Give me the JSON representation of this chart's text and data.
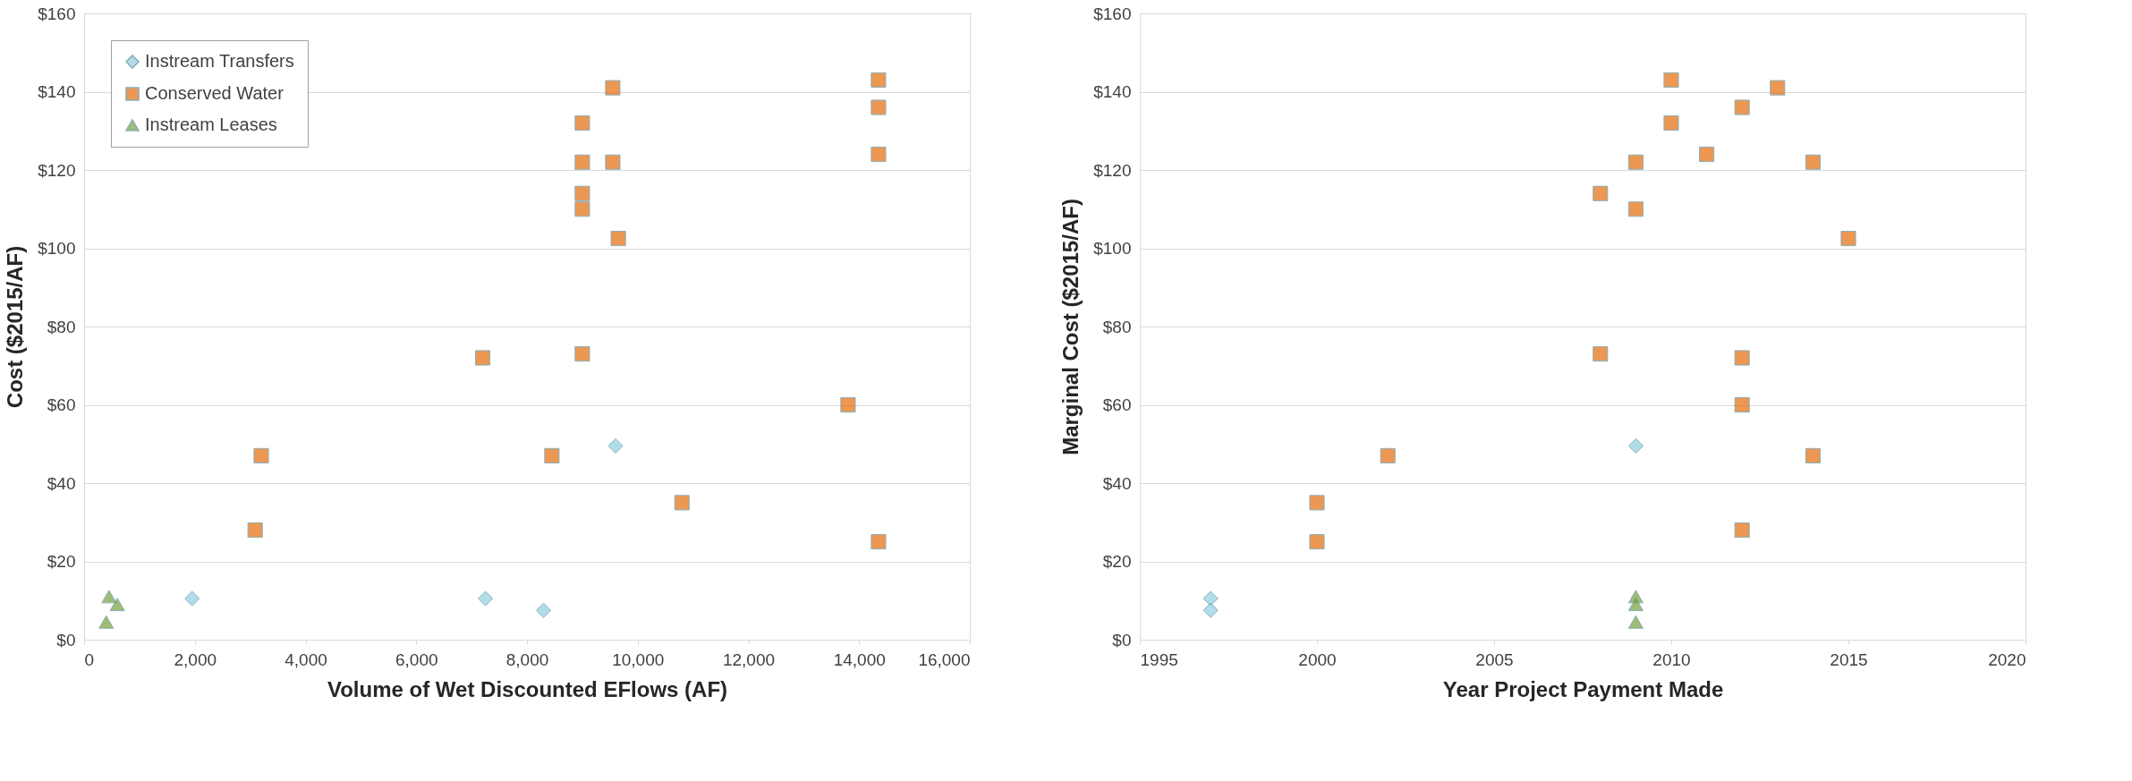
{
  "chart_data": [
    {
      "type": "scatter",
      "xlabel": "Volume of Wet Discounted EFlows (AF)",
      "ylabel": "Cost ($2015/AF)",
      "xlim": [
        0,
        16000
      ],
      "xticks": [
        0,
        {
          "value": 2000,
          "label": "2,000"
        },
        {
          "value": 4000,
          "label": "4,000"
        },
        {
          "value": 6000,
          "label": "6,000"
        },
        {
          "value": 8000,
          "label": "8,000"
        },
        {
          "value": 10000,
          "label": "10,000"
        },
        {
          "value": 12000,
          "label": "12,000"
        },
        {
          "value": 14000,
          "label": "14,000"
        },
        {
          "value": 16000,
          "label": "16,000"
        }
      ],
      "ylim": [
        0,
        160
      ],
      "yticks": [
        {
          "value": 0,
          "label": "$0"
        },
        {
          "value": 20,
          "label": "$20"
        },
        {
          "value": 40,
          "label": "$40"
        },
        {
          "value": 60,
          "label": "$60"
        },
        {
          "value": 80,
          "label": "$80"
        },
        {
          "value": 100,
          "label": "$100"
        },
        {
          "value": 120,
          "label": "$120"
        },
        {
          "value": 140,
          "label": "$140"
        },
        {
          "value": 160,
          "label": "$160"
        }
      ],
      "grid": "y",
      "legend": "top left",
      "series": [
        {
          "name": "Instream Transfers",
          "color": "#8fd0de",
          "marker": "diamond",
          "x": [
            1950,
            7250,
            8300,
            9600
          ],
          "values": [
            10.5,
            10.5,
            7.5,
            49.5
          ]
        },
        {
          "name": "Conserved Water",
          "color": "#e46c0a",
          "marker": "square",
          "x": [
            3090,
            3200,
            7200,
            8450,
            9000,
            9000,
            9000,
            9000,
            9000,
            9550,
            9550,
            9650,
            10800,
            13800,
            14350,
            14350,
            14350,
            14350
          ],
          "values": [
            28,
            47,
            72,
            47,
            73,
            132,
            122,
            114,
            110,
            141,
            122,
            102.5,
            35,
            60,
            143,
            136,
            124,
            25
          ]
        },
        {
          "name": "Instream Leases",
          "color": "#77a03a",
          "marker": "triangle",
          "x": [
            450,
            600,
            400
          ],
          "values": [
            11,
            9,
            4.5
          ]
        }
      ]
    },
    {
      "type": "scatter",
      "xlabel": "Year Project Payment Made",
      "ylabel": "Marginal Cost ($2015/AF)",
      "xlim": [
        1995,
        2020
      ],
      "xticks": [
        1995,
        2000,
        2005,
        2010,
        2015,
        2020
      ],
      "ylim": [
        0,
        160
      ],
      "yticks": [
        {
          "value": 0,
          "label": "$0"
        },
        {
          "value": 20,
          "label": "$20"
        },
        {
          "value": 40,
          "label": "$40"
        },
        {
          "value": 60,
          "label": "$60"
        },
        {
          "value": 80,
          "label": "$80"
        },
        {
          "value": 100,
          "label": "$100"
        },
        {
          "value": 120,
          "label": "$120"
        },
        {
          "value": 140,
          "label": "$140"
        },
        {
          "value": 160,
          "label": "$160"
        }
      ],
      "grid": "y",
      "legend": "top left",
      "series": [
        {
          "name": "Instream Transfers",
          "color": "#8fd0de",
          "marker": "diamond",
          "x": [
            1997,
            1997,
            2009
          ],
          "values": [
            10.5,
            7.5,
            49.5
          ]
        },
        {
          "name": "Conserved Water",
          "color": "#e46c0a",
          "marker": "square",
          "x": [
            2000,
            2000,
            2002,
            2008,
            2008,
            2009,
            2009,
            2010,
            2010,
            2011,
            2012,
            2012,
            2012,
            2012,
            2013,
            2014,
            2014,
            2015
          ],
          "values": [
            35,
            25,
            47,
            114,
            73,
            122,
            110,
            143,
            132,
            124,
            136,
            72,
            60,
            28,
            141,
            122,
            47,
            102.5
          ]
        },
        {
          "name": "Instream Leases",
          "color": "#77a03a",
          "marker": "triangle",
          "x": [
            2009,
            2009,
            2009
          ],
          "values": [
            11,
            9,
            4.5
          ]
        }
      ]
    }
  ]
}
